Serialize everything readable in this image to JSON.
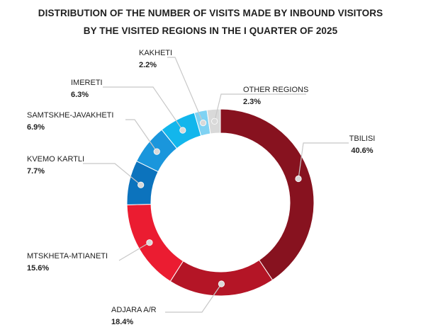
{
  "chart_data": {
    "type": "pie",
    "donut": true,
    "title_lines": [
      "DISTRIBUTION OF THE NUMBER OF VISITS MADE BY INBOUND VISITORS",
      "BY THE VISITED REGIONS IN THE I QUARTER OF 2025"
    ],
    "slices": [
      {
        "key": "tbilisi",
        "label": "TBILISI",
        "value": 40.6,
        "display": "40.6%",
        "color": "#87121f"
      },
      {
        "key": "adjara",
        "label": "ADJARA A/R",
        "value": 18.4,
        "display": "18.4%",
        "color": "#b41526"
      },
      {
        "key": "mtskheta",
        "label": "MTSKHETA-MTIANETI",
        "value": 15.6,
        "display": "15.6%",
        "color": "#eb1c31"
      },
      {
        "key": "kvemo",
        "label": "KVEMO KARTLI",
        "value": 7.7,
        "display": "7.7%",
        "color": "#0c73bd"
      },
      {
        "key": "samtskhe",
        "label": "SAMTSKHE-JAVAKHETI",
        "value": 6.9,
        "display": "6.9%",
        "color": "#1a96dc"
      },
      {
        "key": "imereti",
        "label": "IMERETI",
        "value": 6.3,
        "display": "6.3%",
        "color": "#12b6ec"
      },
      {
        "key": "kakheti",
        "label": "KAKHETI",
        "value": 2.2,
        "display": "2.2%",
        "color": "#7fd2f3"
      },
      {
        "key": "other",
        "label": "OTHER REGIONS",
        "value": 2.3,
        "display": "2.3%",
        "color": "#d9d9d9"
      }
    ]
  }
}
